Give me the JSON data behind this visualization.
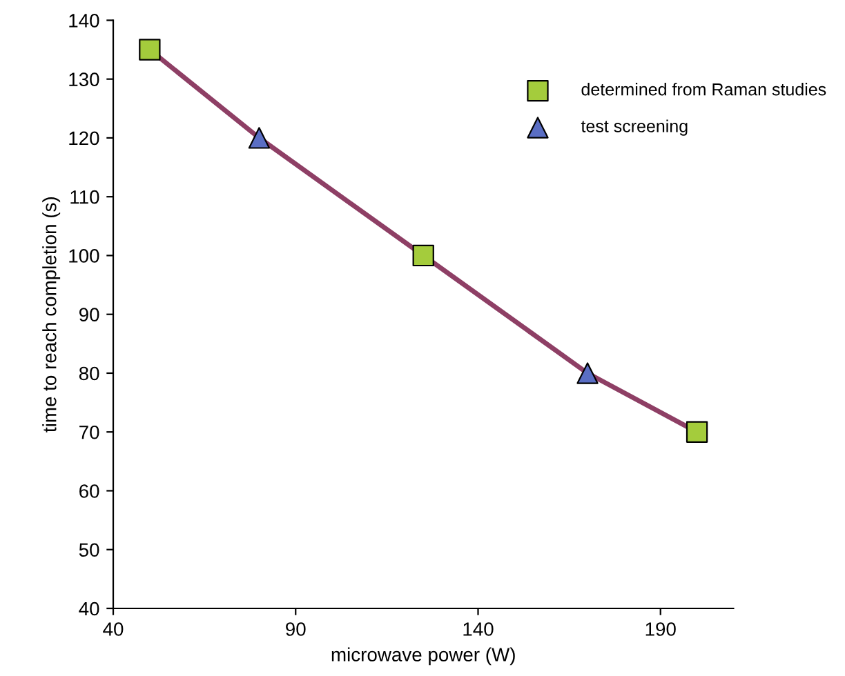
{
  "chart_data": {
    "type": "scatter",
    "xlabel": "microwave power (W)",
    "ylabel": "time to reach completion (s)",
    "xlim": [
      40,
      210
    ],
    "xticks": [
      40,
      90,
      140,
      190
    ],
    "ylim": [
      40,
      140
    ],
    "yticks": [
      40,
      50,
      60,
      70,
      80,
      90,
      100,
      110,
      120,
      130,
      140
    ],
    "grid": false,
    "legend": "top right",
    "series": [
      {
        "type": "line",
        "color": "#8e3f65",
        "marker": "none",
        "line_style": "solid",
        "x": [
          50,
          80,
          125,
          170,
          200
        ],
        "values": [
          135,
          120,
          100,
          80,
          70
        ]
      },
      {
        "name": "determined from Raman studies",
        "color": "#a4cc3c",
        "marker": "square",
        "x": [
          50,
          125,
          200
        ],
        "values": [
          135,
          100,
          70
        ]
      },
      {
        "name": "test screening",
        "color": "#5a6ec4",
        "marker": "triangle",
        "x": [
          80,
          170
        ],
        "values": [
          120,
          80
        ]
      }
    ]
  }
}
